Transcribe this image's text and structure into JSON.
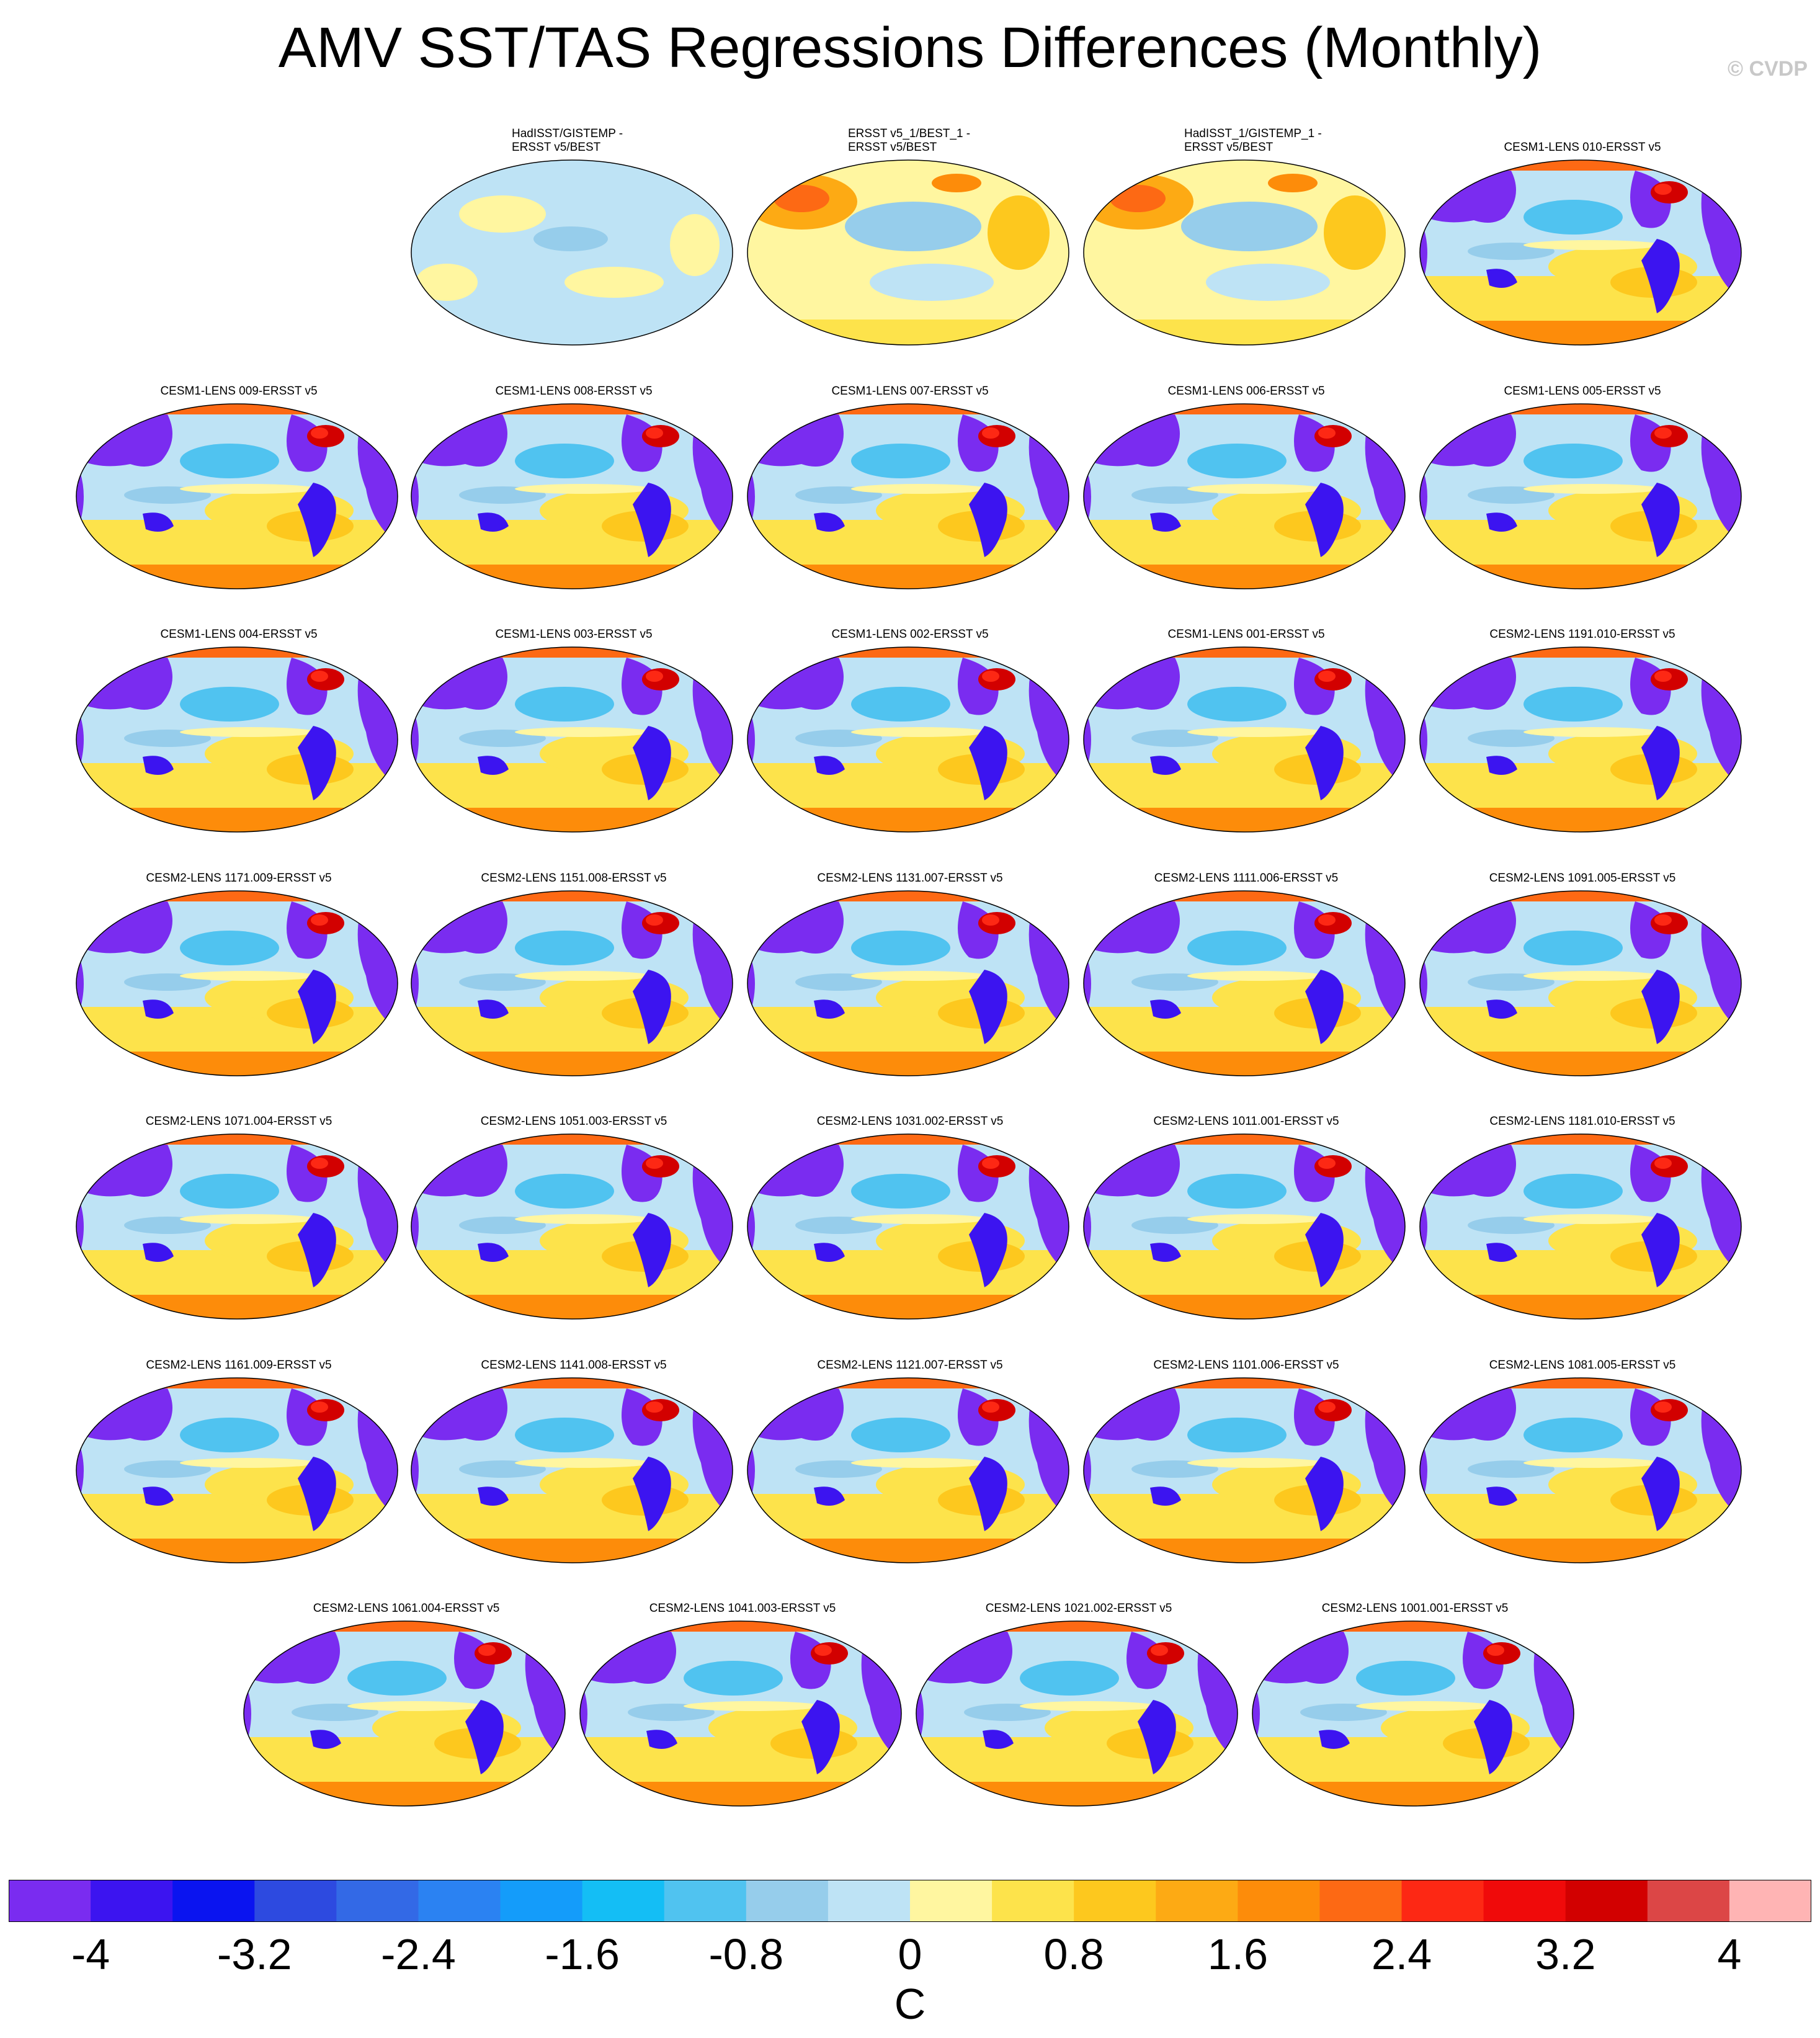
{
  "title": "AMV SST/TAS Regressions Differences (Monthly)",
  "copyright": "© CVDP",
  "colorbar": {
    "units": "C",
    "colors": [
      "#7a2cf0",
      "#3c14f0",
      "#0a14f0",
      "#2d4ae0",
      "#3369e6",
      "#2b82f2",
      "#149cfa",
      "#14bef5",
      "#50c3f0",
      "#96cdeb",
      "#bee3f5",
      "#fff6a0",
      "#fde34b",
      "#fdc81e",
      "#fdaa14",
      "#fd8c0a",
      "#fd6914",
      "#fd2814",
      "#f00a0a",
      "#d20000",
      "#dc4646",
      "#ffb4b4"
    ],
    "tick_labels": [
      "-4",
      "-3.2",
      "-2.4",
      "-1.6",
      "-0.8",
      "0",
      "0.8",
      "1.6",
      "2.4",
      "3.2",
      "4"
    ]
  },
  "panels": [
    {
      "title": "HadISST/GISTEMP -\nERSST v5/BEST",
      "style": "obs"
    },
    {
      "title": "ERSST v5_1/BEST_1 -\nERSST v5/BEST",
      "style": "obswarm"
    },
    {
      "title": "HadISST_1/GISTEMP_1 -\nERSST v5/BEST",
      "style": "obswarm"
    },
    {
      "title": "CESM1-LENS 010-ERSST v5",
      "style": "model"
    },
    {
      "title": "CESM1-LENS 009-ERSST v5",
      "style": "model"
    },
    {
      "title": "CESM1-LENS 008-ERSST v5",
      "style": "model"
    },
    {
      "title": "CESM1-LENS 007-ERSST v5",
      "style": "model"
    },
    {
      "title": "CESM1-LENS 006-ERSST v5",
      "style": "model"
    },
    {
      "title": "CESM1-LENS 005-ERSST v5",
      "style": "model"
    },
    {
      "title": "CESM1-LENS 004-ERSST v5",
      "style": "model"
    },
    {
      "title": "CESM1-LENS 003-ERSST v5",
      "style": "model"
    },
    {
      "title": "CESM1-LENS 002-ERSST v5",
      "style": "model"
    },
    {
      "title": "CESM1-LENS 001-ERSST v5",
      "style": "model"
    },
    {
      "title": "CESM2-LENS 1191.010-ERSST v5",
      "style": "model"
    },
    {
      "title": "CESM2-LENS 1171.009-ERSST v5",
      "style": "model"
    },
    {
      "title": "CESM2-LENS 1151.008-ERSST v5",
      "style": "model"
    },
    {
      "title": "CESM2-LENS 1131.007-ERSST v5",
      "style": "model"
    },
    {
      "title": "CESM2-LENS 1111.006-ERSST v5",
      "style": "model"
    },
    {
      "title": "CESM2-LENS 1091.005-ERSST v5",
      "style": "model"
    },
    {
      "title": "CESM2-LENS 1071.004-ERSST v5",
      "style": "model"
    },
    {
      "title": "CESM2-LENS 1051.003-ERSST v5",
      "style": "model"
    },
    {
      "title": "CESM2-LENS 1031.002-ERSST v5",
      "style": "model"
    },
    {
      "title": "CESM2-LENS 1011.001-ERSST v5",
      "style": "model"
    },
    {
      "title": "CESM2-LENS 1181.010-ERSST v5",
      "style": "model"
    },
    {
      "title": "CESM2-LENS 1161.009-ERSST v5",
      "style": "model"
    },
    {
      "title": "CESM2-LENS 1141.008-ERSST v5",
      "style": "model"
    },
    {
      "title": "CESM2-LENS 1121.007-ERSST v5",
      "style": "model"
    },
    {
      "title": "CESM2-LENS 1101.006-ERSST v5",
      "style": "model"
    },
    {
      "title": "CESM2-LENS 1081.005-ERSST v5",
      "style": "model"
    },
    {
      "title": "CESM2-LENS 1061.004-ERSST v5",
      "style": "model"
    },
    {
      "title": "CESM2-LENS 1041.003-ERSST v5",
      "style": "model"
    },
    {
      "title": "CESM2-LENS 1021.002-ERSST v5",
      "style": "model"
    },
    {
      "title": "CESM2-LENS 1001.001-ERSST v5",
      "style": "model"
    }
  ]
}
